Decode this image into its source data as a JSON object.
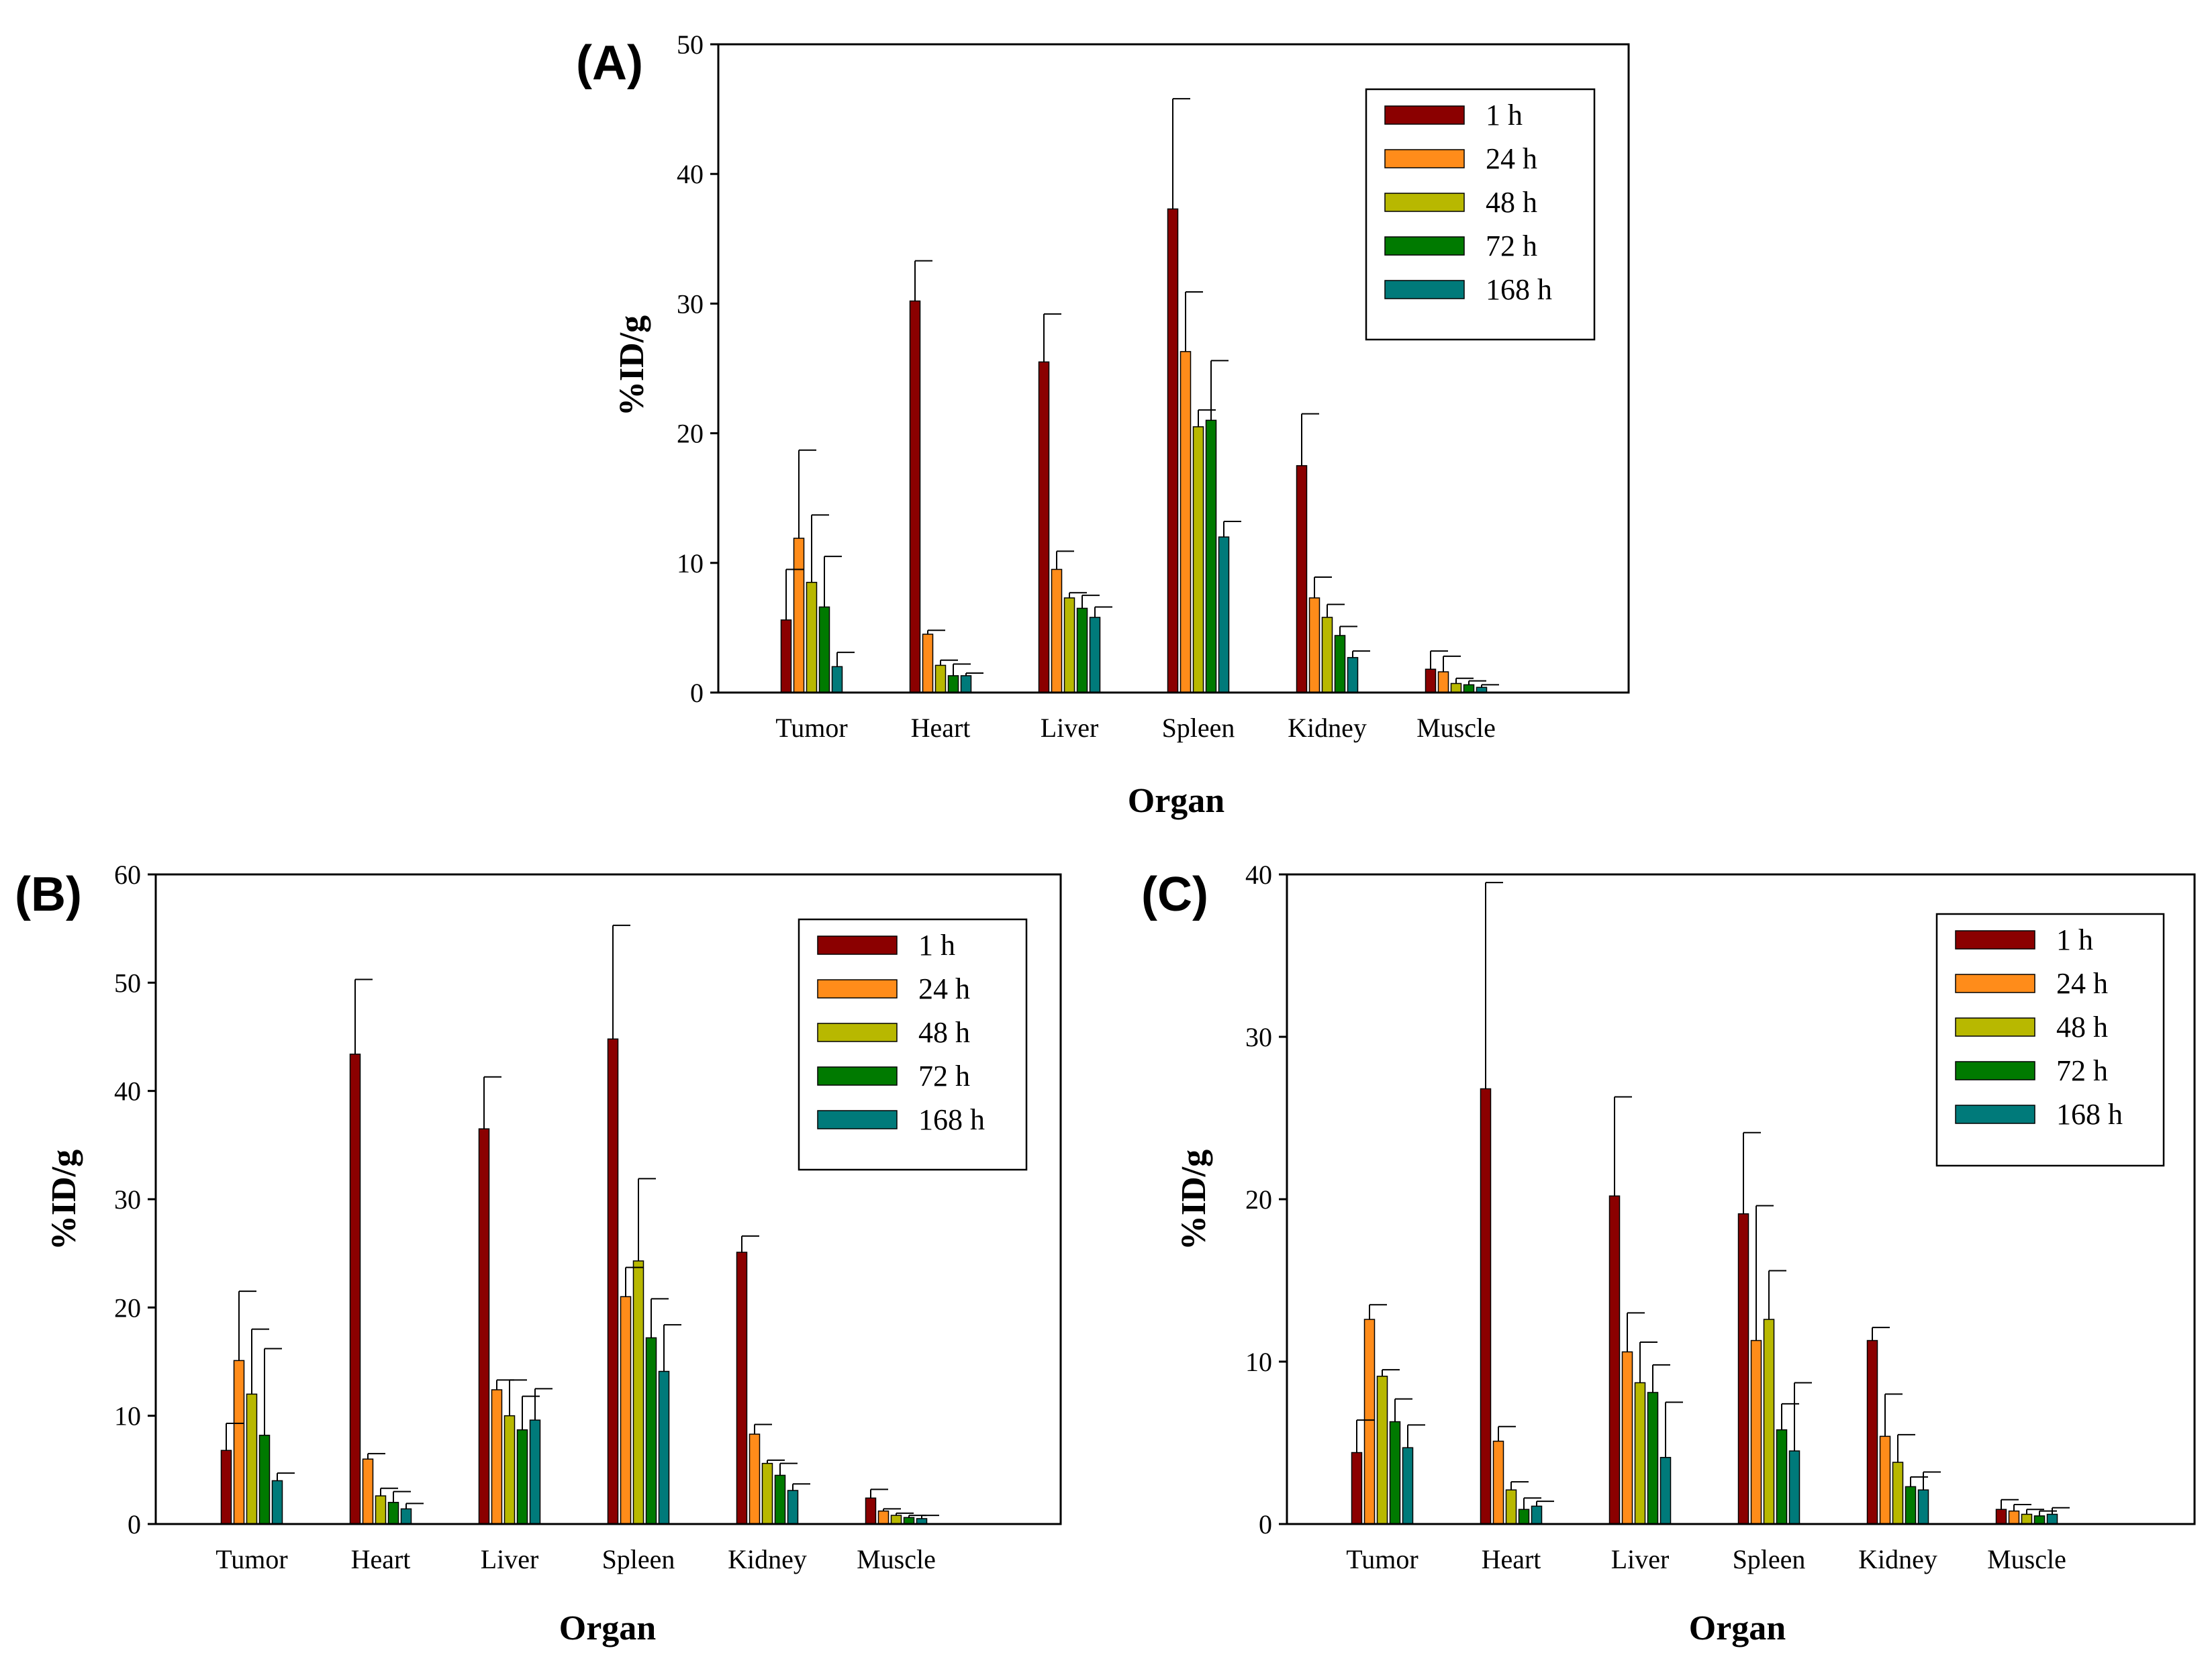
{
  "chart_data": [
    {
      "panel": "(A)",
      "type": "bar",
      "xlabel": "Organ",
      "ylabel": "%ID/g",
      "ylim": [
        0,
        50
      ],
      "yticks": [
        0,
        10,
        20,
        30,
        40,
        50
      ],
      "categories": [
        "Tumor",
        "Heart",
        "Liver",
        "Spleen",
        "Kidney",
        "Muscle"
      ],
      "legend_position": "top-right",
      "series": [
        {
          "name": "1 h",
          "color": "#8B0000",
          "values": [
            5.6,
            30.2,
            25.5,
            37.3,
            17.5,
            1.8
          ],
          "errors": [
            3.9,
            3.1,
            3.7,
            8.5,
            4.0,
            1.4
          ]
        },
        {
          "name": "24 h",
          "color": "#FF8C1A",
          "values": [
            11.9,
            4.5,
            9.5,
            26.3,
            7.3,
            1.6
          ],
          "errors": [
            6.8,
            0.3,
            1.4,
            4.6,
            1.6,
            1.2
          ]
        },
        {
          "name": "48 h",
          "color": "#B8B800",
          "values": [
            8.5,
            2.1,
            7.3,
            20.5,
            5.8,
            0.7
          ],
          "errors": [
            5.2,
            0.4,
            0.4,
            1.3,
            1.0,
            0.4
          ]
        },
        {
          "name": "72 h",
          "color": "#007A00",
          "values": [
            6.6,
            1.3,
            6.5,
            21.0,
            4.4,
            0.6
          ],
          "errors": [
            3.9,
            0.9,
            1.0,
            4.6,
            0.7,
            0.3
          ]
        },
        {
          "name": "168 h",
          "color": "#007A7A",
          "values": [
            2.0,
            1.3,
            5.8,
            12.0,
            2.7,
            0.4
          ],
          "errors": [
            1.1,
            0.2,
            0.8,
            1.2,
            0.5,
            0.2
          ]
        }
      ]
    },
    {
      "panel": "(B)",
      "type": "bar",
      "xlabel": "Organ",
      "ylabel": "%ID/g",
      "ylim": [
        0,
        60
      ],
      "yticks": [
        0,
        10,
        20,
        30,
        40,
        50,
        60
      ],
      "categories": [
        "Tumor",
        "Heart",
        "Liver",
        "Spleen",
        "Kidney",
        "Muscle"
      ],
      "legend_position": "top-right",
      "series": [
        {
          "name": "1 h",
          "color": "#8B0000",
          "values": [
            6.8,
            43.4,
            36.5,
            44.8,
            25.1,
            2.4
          ],
          "errors": [
            2.5,
            6.9,
            4.8,
            10.5,
            1.5,
            0.8
          ]
        },
        {
          "name": "24 h",
          "color": "#FF8C1A",
          "values": [
            15.1,
            6.0,
            12.4,
            21.0,
            8.3,
            1.2
          ],
          "errors": [
            6.4,
            0.5,
            0.9,
            2.7,
            0.9,
            0.2
          ]
        },
        {
          "name": "48 h",
          "color": "#B8B800",
          "values": [
            12.0,
            2.6,
            10.0,
            24.3,
            5.6,
            0.8
          ],
          "errors": [
            6.0,
            0.7,
            3.3,
            7.6,
            0.3,
            0.2
          ]
        },
        {
          "name": "72 h",
          "color": "#007A00",
          "values": [
            8.2,
            2.0,
            8.7,
            17.2,
            4.5,
            0.6
          ],
          "errors": [
            8.0,
            1.0,
            3.1,
            3.6,
            1.1,
            0.2
          ]
        },
        {
          "name": "168 h",
          "color": "#007A7A",
          "values": [
            4.0,
            1.4,
            9.6,
            14.1,
            3.1,
            0.5
          ],
          "errors": [
            0.7,
            0.5,
            2.9,
            4.3,
            0.6,
            0.3
          ]
        }
      ]
    },
    {
      "panel": "(C)",
      "type": "bar",
      "xlabel": "Organ",
      "ylabel": "%ID/g",
      "ylim": [
        0,
        40
      ],
      "yticks": [
        0,
        10,
        20,
        30,
        40
      ],
      "categories": [
        "Tumor",
        "Heart",
        "Liver",
        "Spleen",
        "Kidney",
        "Muscle"
      ],
      "legend_position": "top-right",
      "series": [
        {
          "name": "1 h",
          "color": "#8B0000",
          "values": [
            4.4,
            26.8,
            20.2,
            19.1,
            11.3,
            0.9
          ],
          "errors": [
            2.0,
            12.7,
            6.1,
            5.0,
            0.8,
            0.6
          ]
        },
        {
          "name": "24 h",
          "color": "#FF8C1A",
          "values": [
            12.6,
            5.1,
            10.6,
            11.3,
            5.4,
            0.8
          ],
          "errors": [
            0.9,
            0.9,
            2.4,
            8.3,
            2.6,
            0.4
          ]
        },
        {
          "name": "48 h",
          "color": "#B8B800",
          "values": [
            9.1,
            2.1,
            8.7,
            12.6,
            3.8,
            0.6
          ],
          "errors": [
            0.4,
            0.5,
            2.5,
            3.0,
            1.7,
            0.3
          ]
        },
        {
          "name": "72 h",
          "color": "#007A00",
          "values": [
            6.3,
            0.9,
            8.1,
            5.8,
            2.3,
            0.5
          ],
          "errors": [
            1.4,
            0.7,
            1.7,
            1.6,
            0.6,
            0.3
          ]
        },
        {
          "name": "168 h",
          "color": "#007A7A",
          "values": [
            4.7,
            1.1,
            4.1,
            4.5,
            2.1,
            0.6
          ],
          "errors": [
            1.4,
            0.3,
            3.4,
            4.2,
            1.1,
            0.4
          ]
        }
      ]
    }
  ]
}
